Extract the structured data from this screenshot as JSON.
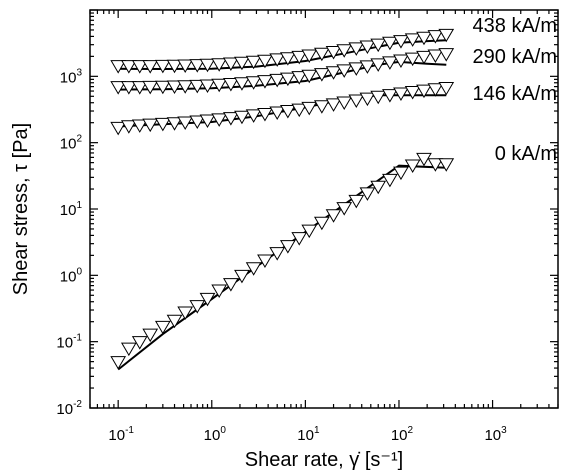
{
  "chart_data": {
    "type": "scatter",
    "title": "",
    "xlabel": "Shear rate, γ̇ [s⁻¹]",
    "ylabel": "Shear stress, τ [Pa]",
    "xscale": "log",
    "yscale": "log",
    "xlim": [
      0.05,
      5000
    ],
    "ylim": [
      0.01,
      10000
    ],
    "grid": false,
    "legend": "labels at right end of each series",
    "x_ticks": [
      {
        "base": "10",
        "exp": "-1"
      },
      {
        "base": "10",
        "exp": "0"
      },
      {
        "base": "10",
        "exp": "1"
      },
      {
        "base": "10",
        "exp": "2"
      },
      {
        "base": "10",
        "exp": "3"
      }
    ],
    "y_ticks": [
      {
        "base": "10",
        "exp": "-2"
      },
      {
        "base": "10",
        "exp": "-1"
      },
      {
        "base": "10",
        "exp": "0"
      },
      {
        "base": "10",
        "exp": "1"
      },
      {
        "base": "10",
        "exp": "2"
      },
      {
        "base": "10",
        "exp": "3"
      }
    ],
    "marker": "open down-triangle",
    "colors": {
      "marker": "#000000",
      "line": "#000000"
    },
    "series": [
      {
        "name": "0 kA/m",
        "x": [
          0.1,
          0.13,
          0.17,
          0.22,
          0.3,
          0.4,
          0.52,
          0.7,
          0.9,
          1.2,
          1.6,
          2.1,
          2.8,
          3.7,
          5,
          6.5,
          8.6,
          11,
          15,
          20,
          26,
          35,
          46,
          60,
          80,
          105,
          140,
          185,
          245,
          320
        ],
        "y": [
          0.05,
          0.08,
          0.1,
          0.13,
          0.17,
          0.21,
          0.28,
          0.35,
          0.45,
          0.6,
          0.75,
          1.0,
          1.3,
          1.7,
          2.2,
          2.8,
          3.7,
          4.8,
          6.3,
          8.2,
          10.5,
          13.5,
          17.5,
          22,
          28,
          36,
          46,
          58,
          48,
          48
        ]
      },
      {
        "name": "146 kA/m",
        "x": [
          0.1,
          0.13,
          0.17,
          0.22,
          0.3,
          0.4,
          0.52,
          0.7,
          0.9,
          1.2,
          1.6,
          2.1,
          2.8,
          3.7,
          5,
          6.5,
          8.6,
          11,
          15,
          20,
          26,
          35,
          46,
          60,
          80,
          105,
          140,
          185,
          245,
          320
        ],
        "y": [
          170,
          180,
          185,
          190,
          195,
          200,
          205,
          212,
          220,
          228,
          238,
          250,
          262,
          275,
          290,
          305,
          320,
          340,
          360,
          385,
          410,
          440,
          470,
          500,
          530,
          560,
          590,
          620,
          650,
          680
        ]
      },
      {
        "name": "290 kA/m",
        "x": [
          0.1,
          0.13,
          0.17,
          0.22,
          0.3,
          0.4,
          0.52,
          0.7,
          0.9,
          1.2,
          1.6,
          2.1,
          2.8,
          3.7,
          5,
          6.5,
          8.6,
          11,
          15,
          20,
          26,
          35,
          46,
          60,
          80,
          105,
          140,
          185,
          245,
          320
        ],
        "y": [
          700,
          700,
          700,
          705,
          710,
          715,
          720,
          730,
          740,
          760,
          780,
          800,
          830,
          860,
          900,
          940,
          990,
          1040,
          1100,
          1170,
          1250,
          1340,
          1440,
          1540,
          1650,
          1760,
          1880,
          2000,
          2100,
          2200
        ]
      },
      {
        "name": "438 kA/m",
        "x": [
          0.1,
          0.13,
          0.17,
          0.22,
          0.3,
          0.4,
          0.52,
          0.7,
          0.9,
          1.2,
          1.6,
          2.1,
          2.8,
          3.7,
          5,
          6.5,
          8.6,
          11,
          15,
          20,
          26,
          35,
          46,
          60,
          80,
          105,
          140,
          185,
          245,
          320
        ],
        "y": [
          1450,
          1450,
          1450,
          1450,
          1460,
          1470,
          1480,
          1500,
          1520,
          1550,
          1590,
          1630,
          1690,
          1750,
          1830,
          1910,
          2000,
          2100,
          2230,
          2370,
          2520,
          2690,
          2870,
          3060,
          3260,
          3460,
          3670,
          3890,
          4100,
          4300
        ]
      }
    ],
    "fits": [
      {
        "name": "0 kA/m",
        "x": [
          0.1,
          0.3,
          1,
          3,
          10,
          30,
          100,
          320
        ],
        "y": [
          0.038,
          0.13,
          0.44,
          1.35,
          4.5,
          13.5,
          45,
          42
        ]
      },
      {
        "name": "146 kA/m",
        "x": [
          0.1,
          0.3,
          1,
          3,
          10,
          30,
          60,
          100,
          320
        ],
        "y": [
          175,
          190,
          205,
          250,
          340,
          470,
          520,
          520,
          520
        ]
      },
      {
        "name": "290 kA/m",
        "x": [
          0.1,
          0.3,
          1,
          3,
          10,
          30,
          60,
          100,
          200,
          320
        ],
        "y": [
          630,
          640,
          660,
          720,
          850,
          1200,
          1500,
          1650,
          1550,
          1500
        ]
      },
      {
        "name": "438 kA/m",
        "x": [
          0.1,
          0.3,
          1,
          3,
          10,
          30,
          60,
          100,
          200,
          320
        ],
        "y": [
          1300,
          1290,
          1300,
          1400,
          1700,
          2300,
          2800,
          3200,
          3400,
          3500
        ]
      }
    ]
  }
}
